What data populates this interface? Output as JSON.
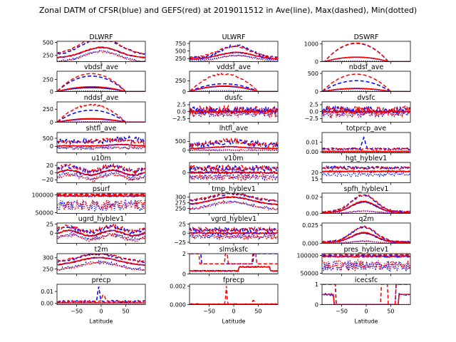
{
  "figure_title": "Zonal DATM of CFSR(blue) and GEFS(red) at 2019011512 in Ave(line), Max(dashed), Min(dotted)",
  "colors": {
    "cfsr": "#0000ff",
    "gefs": "#ff0000"
  },
  "legend_encoding": {
    "ave": "line",
    "max": "dashed",
    "min": "dotted"
  },
  "chart_data": [
    {
      "type": "line",
      "title": "DLWRF",
      "xlabel": "",
      "ylim": [
        130,
        520
      ],
      "yticks": [
        250,
        500
      ],
      "xtick_labels": false,
      "profile": "dlwrf"
    },
    {
      "type": "line",
      "title": "ULWRF",
      "xlabel": "",
      "ylim": [
        150,
        820
      ],
      "yticks": [
        250,
        500,
        750
      ],
      "xtick_labels": false,
      "profile": "ulwrf"
    },
    {
      "type": "line",
      "title": "DSWRF",
      "xlabel": "",
      "ylim": [
        0,
        1150
      ],
      "yticks": [
        0,
        1000
      ],
      "xtick_labels": false,
      "profile": "dswrf"
    },
    {
      "type": "line",
      "title": "vbdsf_ave",
      "xlabel": "",
      "ylim": [
        0,
        420
      ],
      "yticks": [
        0,
        250
      ],
      "xtick_labels": false,
      "profile": "vbdsf"
    },
    {
      "type": "line",
      "title": "vddsf_ave",
      "xlabel": "",
      "ylim": [
        0,
        470
      ],
      "yticks": [
        0,
        250
      ],
      "xtick_labels": false,
      "profile": "vddsf"
    },
    {
      "type": "line",
      "title": "nbdsf_ave",
      "xlabel": "",
      "ylim": [
        0,
        560
      ],
      "yticks": [
        0,
        500
      ],
      "xtick_labels": false,
      "profile": "nbdsf"
    },
    {
      "type": "line",
      "title": "nddsf_ave",
      "xlabel": "",
      "ylim": [
        0,
        390
      ],
      "yticks": [
        0,
        250
      ],
      "xtick_labels": false,
      "profile": "nddsf"
    },
    {
      "type": "line",
      "title": "dusfc",
      "xlabel": "",
      "ylim": [
        -3.8,
        3.5
      ],
      "yticks": [
        -2.5,
        0.0,
        2.5
      ],
      "xtick_labels": false,
      "profile": "dusfc"
    },
    {
      "type": "line",
      "title": "dvsfc",
      "xlabel": "",
      "ylim": [
        -3.8,
        3.5
      ],
      "yticks": [
        -2.5,
        0.0,
        2.5
      ],
      "xtick_labels": false,
      "profile": "dvsfc"
    },
    {
      "type": "line",
      "title": "shtfl_ave",
      "xlabel": "",
      "ylim": [
        -400,
        850
      ],
      "yticks": [
        0,
        500
      ],
      "xtick_labels": false,
      "profile": "shtfl"
    },
    {
      "type": "line",
      "title": "lhtfl_ave",
      "xlabel": "",
      "ylim": [
        -150,
        1000
      ],
      "yticks": [
        0,
        500
      ],
      "xtick_labels": false,
      "profile": "lhtfl"
    },
    {
      "type": "line",
      "title": "totprcp_ave",
      "xlabel": "",
      "ylim": [
        -0.001,
        0.02
      ],
      "yticks": [
        0.0,
        0.01
      ],
      "xtick_labels": false,
      "profile": "totprcp"
    },
    {
      "type": "line",
      "title": "u10m",
      "xlabel": "",
      "ylim": [
        -28,
        28
      ],
      "yticks": [
        -20,
        0,
        20
      ],
      "xtick_labels": false,
      "profile": "u10m"
    },
    {
      "type": "line",
      "title": "v10m",
      "xlabel": "",
      "ylim": [
        -22,
        22
      ],
      "yticks": [
        0
      ],
      "xtick_labels": false,
      "profile": "v10m"
    },
    {
      "type": "line",
      "title": "hgt_hyblev1",
      "xlabel": "",
      "ylim": [
        12,
        28
      ],
      "yticks": [
        15,
        20
      ],
      "xtick_labels": false,
      "profile": "hgt"
    },
    {
      "type": "line",
      "title": "psurf",
      "xlabel": "",
      "ylim": [
        48000,
        105000
      ],
      "yticks": [
        50000,
        100000
      ],
      "xtick_labels": false,
      "profile": "psurf"
    },
    {
      "type": "line",
      "title": "tmp_hyblev1",
      "xlabel": "",
      "ylim": [
        228,
        318
      ],
      "yticks": [
        250,
        275,
        300
      ],
      "xtick_labels": false,
      "profile": "tmp"
    },
    {
      "type": "line",
      "title": "spfh_hyblev1",
      "xlabel": "",
      "ylim": [
        0,
        0.025
      ],
      "yticks": [
        0.0,
        0.02
      ],
      "xtick_labels": false,
      "profile": "spfh"
    },
    {
      "type": "line",
      "title": "ugrd_hyblev1",
      "xlabel": "",
      "ylim": [
        -28,
        28
      ],
      "yticks": [
        0,
        25
      ],
      "xtick_labels": false,
      "profile": "ugrd"
    },
    {
      "type": "line",
      "title": "vgrd_hyblev1",
      "xlabel": "",
      "ylim": [
        -28,
        28
      ],
      "yticks": [
        -25,
        0,
        25
      ],
      "xtick_labels": false,
      "profile": "vgrd"
    },
    {
      "type": "line",
      "title": "q2m",
      "xlabel": "",
      "ylim": [
        0,
        0.028
      ],
      "yticks": [
        0.0,
        0.025
      ],
      "xtick_labels": false,
      "profile": "q2m"
    },
    {
      "type": "line",
      "title": "t2m",
      "xlabel": "",
      "ylim": [
        228,
        318
      ],
      "yticks": [
        250,
        300
      ],
      "xtick_labels": false,
      "profile": "t2m"
    },
    {
      "type": "line",
      "title": "slmsksfc",
      "xlabel": "",
      "ylim": [
        0,
        2
      ],
      "yticks": [
        0,
        2
      ],
      "xtick_labels": false,
      "profile": "slmsk"
    },
    {
      "type": "line",
      "title": "pres_hyblev1",
      "xlabel": "",
      "ylim": [
        48000,
        105000
      ],
      "yticks": [
        50000,
        100000
      ],
      "xtick_labels": false,
      "profile": "pres"
    },
    {
      "type": "line",
      "title": "precp",
      "xlabel": "Latitude",
      "ylim": [
        -0.001,
        0.016
      ],
      "yticks": [
        0.0,
        0.01
      ],
      "xtick_labels": true,
      "profile": "precp"
    },
    {
      "type": "line",
      "title": "fprecp",
      "xlabel": "Latitude",
      "ylim": [
        0,
        0.0022
      ],
      "yticks": [
        0.0,
        0.002
      ],
      "xtick_labels": true,
      "profile": "fprecp"
    },
    {
      "type": "line",
      "title": "icecsfc",
      "xlabel": "Latitude",
      "ylim": [
        0,
        1
      ],
      "yticks": [
        0,
        1
      ],
      "xtick_labels": true,
      "profile": "icec"
    }
  ],
  "x_axis": {
    "xlim": [
      -90,
      90
    ],
    "xticks": [
      -50,
      0,
      50
    ]
  }
}
